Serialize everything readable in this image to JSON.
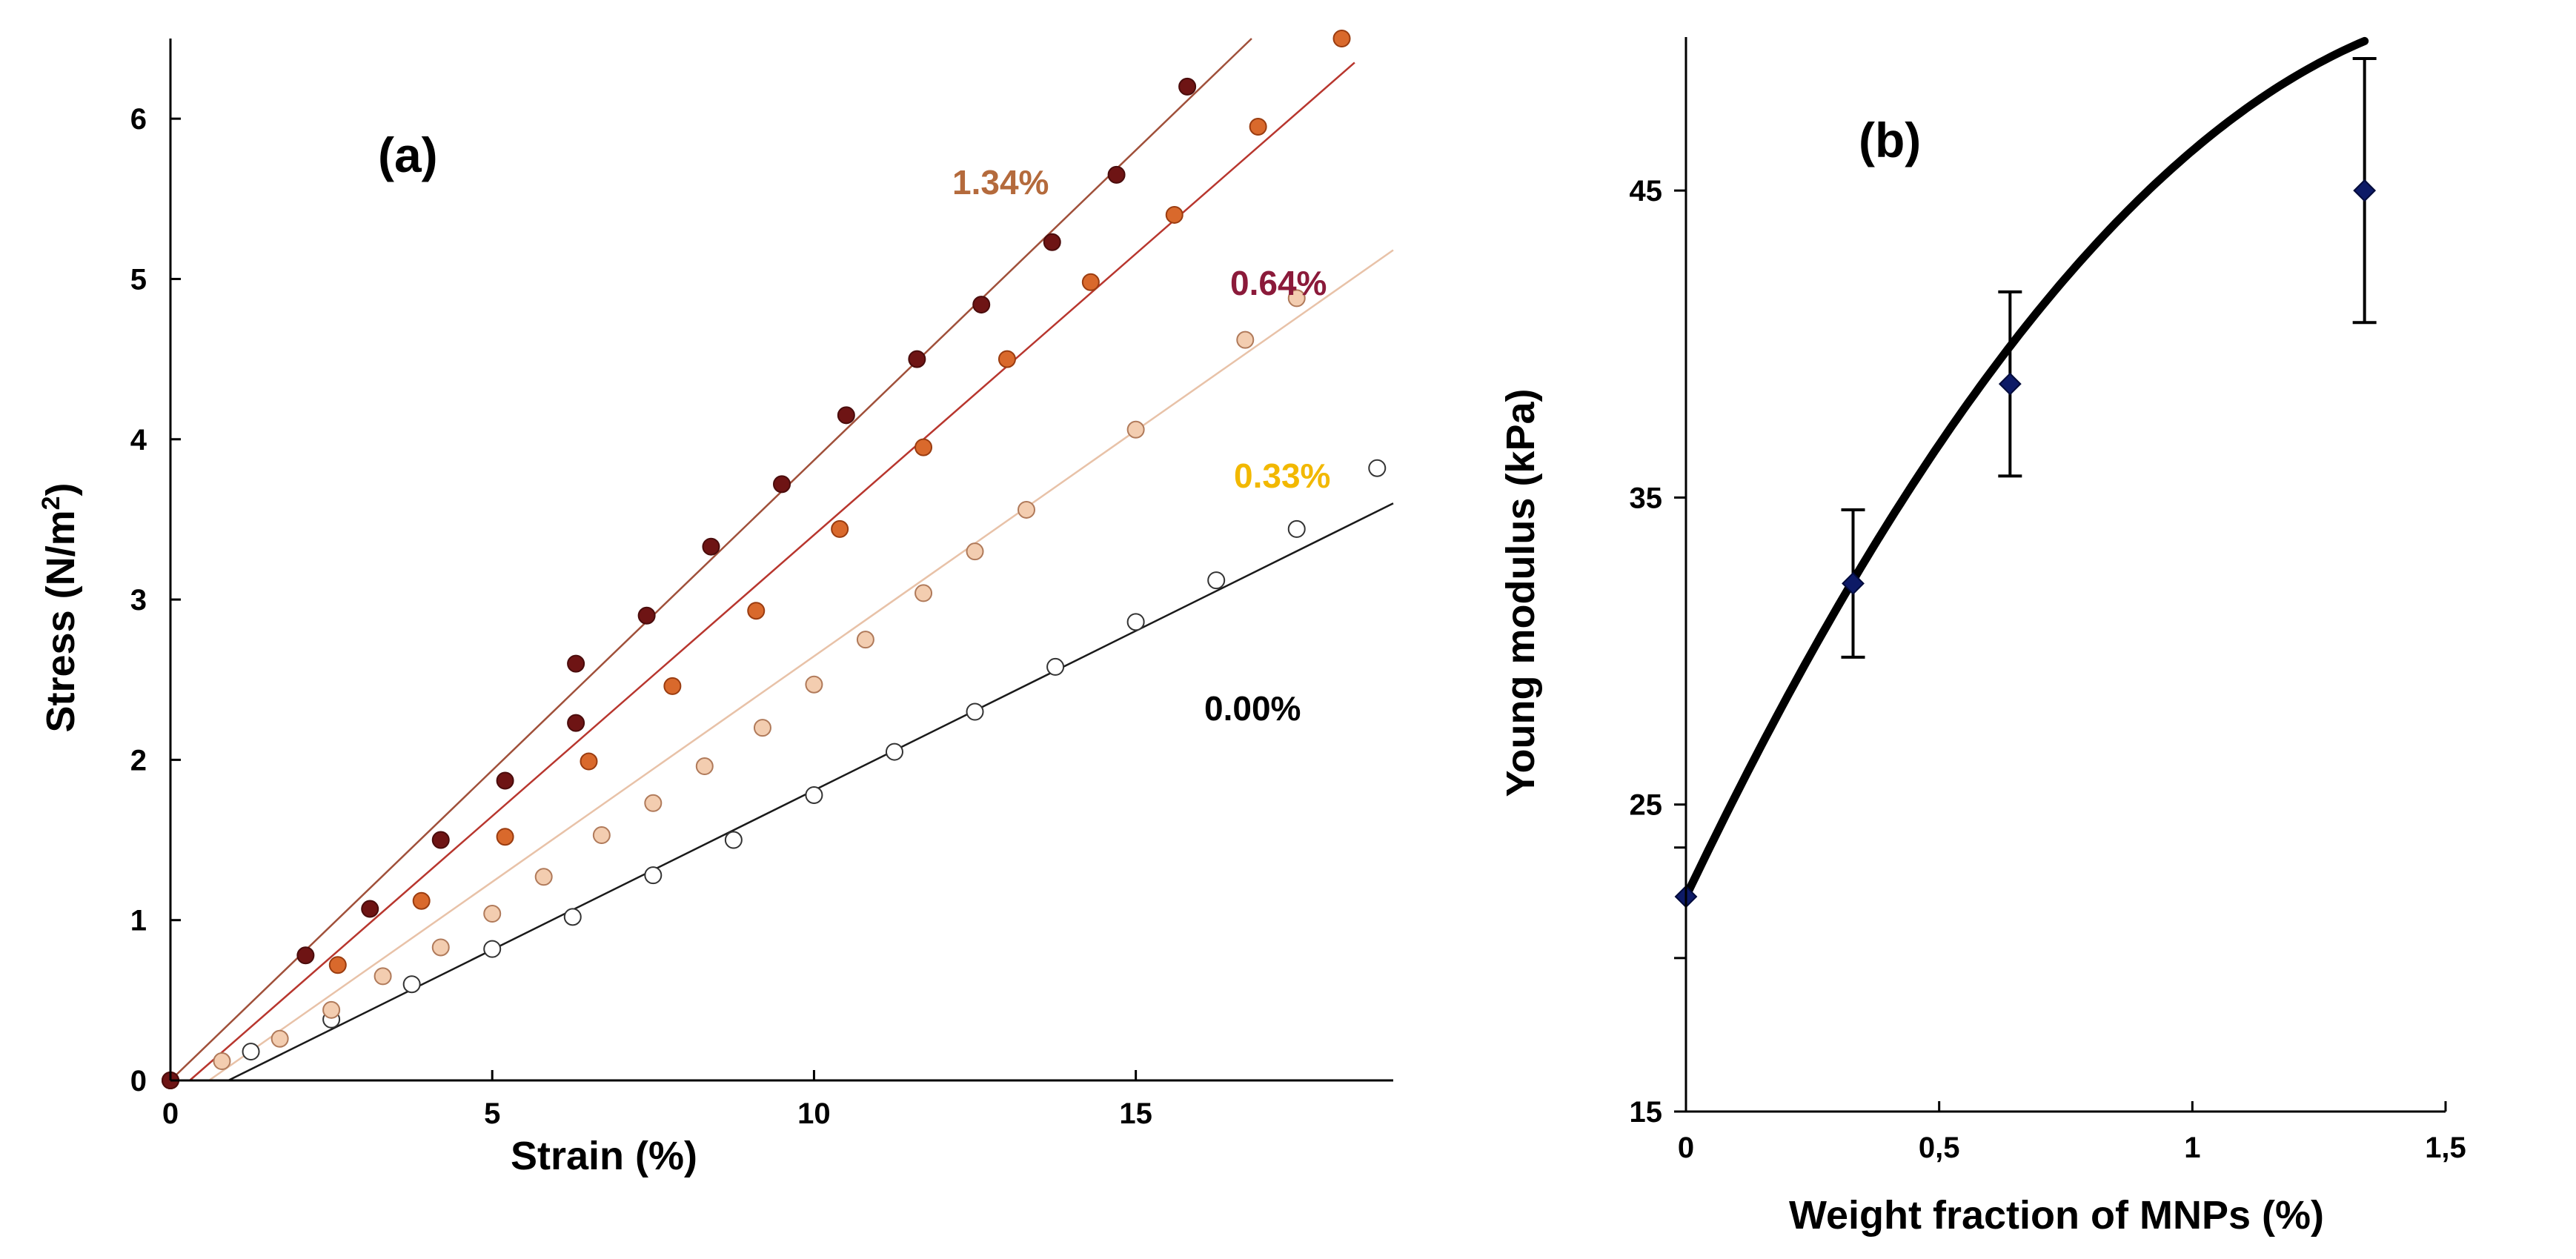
{
  "chart_data": [
    {
      "type": "scatter",
      "panel_label": "(a)",
      "xlabel": "Strain (%)",
      "ylabel": "Stress (N/m",
      "ylabel_sup": "2",
      "ylabel_close": ")",
      "xlim": [
        0,
        19
      ],
      "ylim": [
        0,
        6.5
      ],
      "xticks": [
        0,
        5,
        10,
        15
      ],
      "yticks": [
        0,
        1,
        2,
        3,
        4,
        5,
        6
      ],
      "xtick_labels": [
        "0",
        "5",
        "10",
        "15"
      ],
      "ytick_labels": [
        "0",
        "1",
        "2",
        "3",
        "4",
        "5",
        "6"
      ],
      "series": [
        {
          "name": "1.34%",
          "label_color": "#b46a3c",
          "marker_fill": "#6e1414",
          "marker_stroke": "#4a0c0c",
          "line_color": "#a0503a",
          "fit": {
            "x": [
              0,
              16.8
            ],
            "y": [
              0,
              6.5
            ]
          },
          "x": [
            0,
            2.1,
            3.1,
            4.2,
            5.2,
            6.3,
            6.3,
            7.4,
            8.4,
            9.5,
            10.5,
            11.6,
            12.6,
            13.7,
            14.7,
            15.8
          ],
          "y": [
            0,
            0.78,
            1.07,
            1.5,
            1.87,
            2.23,
            2.6,
            2.9,
            3.33,
            3.72,
            4.15,
            4.5,
            4.84,
            5.23,
            5.65,
            6.2
          ]
        },
        {
          "name": "0.64%",
          "label_color": "#8b1a3a",
          "marker_fill": "#d9692c",
          "marker_stroke": "#9a3c10",
          "line_color": "#b8362e",
          "fit": {
            "x": [
              0.3,
              18.4
            ],
            "y": [
              0,
              6.35
            ]
          },
          "x": [
            0,
            2.6,
            3.9,
            5.2,
            6.5,
            7.8,
            9.1,
            10.4,
            11.7,
            13.0,
            14.3,
            15.6,
            16.9,
            18.2
          ],
          "y": [
            0,
            0.72,
            1.12,
            1.52,
            1.99,
            2.46,
            2.93,
            3.44,
            3.95,
            4.5,
            4.98,
            5.4,
            5.95,
            6.5
          ]
        },
        {
          "name": "0.33%",
          "label_color": "#f2b800",
          "marker_fill": "#f3cdb0",
          "marker_stroke": "#b07a5a",
          "line_color": "#e8c2a8",
          "fit": {
            "x": [
              0.6,
              19
            ],
            "y": [
              0,
              5.18
            ]
          },
          "x": [
            0,
            0.8,
            1.7,
            2.5,
            3.3,
            4.2,
            5.0,
            5.8,
            6.7,
            7.5,
            8.3,
            9.2,
            10.0,
            10.8,
            11.7,
            12.5,
            13.3,
            15.0,
            16.7,
            17.5
          ],
          "y": [
            0,
            0.12,
            0.26,
            0.44,
            0.65,
            0.83,
            1.04,
            1.27,
            1.53,
            1.73,
            1.96,
            2.2,
            2.47,
            2.75,
            3.04,
            3.3,
            3.56,
            4.06,
            4.62,
            4.88
          ]
        },
        {
          "name": "0.00%",
          "label_color": "#000000",
          "marker_fill": "#ffffff",
          "marker_stroke": "#333333",
          "line_color": "#1a1a1a",
          "fit": {
            "x": [
              0.9,
              19
            ],
            "y": [
              0,
              3.6
            ]
          },
          "x": [
            0,
            1.25,
            2.5,
            3.75,
            5.0,
            6.25,
            7.5,
            8.75,
            10.0,
            11.25,
            12.5,
            13.75,
            15.0,
            16.25,
            17.5,
            18.75
          ],
          "y": [
            0,
            0.18,
            0.38,
            0.6,
            0.82,
            1.02,
            1.28,
            1.5,
            1.78,
            2.05,
            2.3,
            2.58,
            2.86,
            3.12,
            3.44,
            3.82
          ]
        }
      ]
    },
    {
      "type": "line",
      "panel_label": "(b)",
      "xlabel": "Weight fraction of MNPs (%)",
      "ylabel": "Young modulus (kPa)",
      "xlim": [
        0,
        1.5
      ],
      "ylim": [
        15,
        50
      ],
      "xticks": [
        0,
        0.5,
        1,
        1.5
      ],
      "yticks": [
        15,
        25,
        35,
        45
      ],
      "xtick_labels": [
        "0",
        "0,5",
        "1",
        "1,5"
      ],
      "ytick_labels": [
        "15",
        "25",
        "35",
        "45"
      ],
      "minor_yticks": [
        20,
        23.6
      ],
      "series": [
        {
          "name": "Young modulus",
          "marker_color": "#0d1a66",
          "line_color": "#000000",
          "x": [
            0,
            0.33,
            0.64,
            1.34
          ],
          "y": [
            22,
            32.2,
            38.7,
            45
          ],
          "err": [
            null,
            2.4,
            3.0,
            4.3
          ],
          "curve": [
            22,
            34.6,
            -10.3
          ]
        }
      ]
    }
  ]
}
